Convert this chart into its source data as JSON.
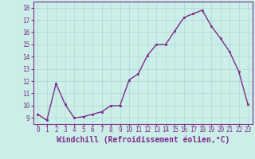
{
  "x": [
    0,
    1,
    2,
    3,
    4,
    5,
    6,
    7,
    8,
    9,
    10,
    11,
    12,
    13,
    14,
    15,
    16,
    17,
    18,
    19,
    20,
    21,
    22,
    23
  ],
  "y": [
    9.3,
    8.8,
    11.8,
    10.1,
    9.0,
    9.1,
    9.3,
    9.5,
    10.0,
    10.0,
    12.1,
    12.6,
    14.1,
    15.0,
    15.0,
    16.1,
    17.2,
    17.5,
    17.8,
    16.5,
    15.5,
    14.4,
    12.8,
    10.1
  ],
  "line_color": "#7b2d8b",
  "marker": "s",
  "marker_size": 2.0,
  "linewidth": 1.0,
  "xlabel": "Windchill (Refroidissement éolien,°C)",
  "ylim": [
    8.5,
    18.5
  ],
  "xlim": [
    -0.5,
    23.5
  ],
  "yticks": [
    9,
    10,
    11,
    12,
    13,
    14,
    15,
    16,
    17,
    18
  ],
  "xticks": [
    0,
    1,
    2,
    3,
    4,
    5,
    6,
    7,
    8,
    9,
    10,
    11,
    12,
    13,
    14,
    15,
    16,
    17,
    18,
    19,
    20,
    21,
    22,
    23
  ],
  "background_color": "#cceee8",
  "grid_color": "#aad8d2",
  "tick_label_fontsize": 5.5,
  "xlabel_fontsize": 7.0
}
